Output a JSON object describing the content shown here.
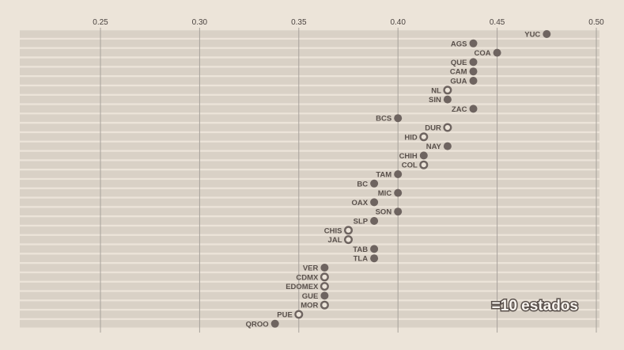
{
  "chart_data": {
    "type": "scatter",
    "title": "",
    "xlabel": "",
    "ylabel": "",
    "xlim": [
      0.2,
      0.5
    ],
    "x_ticks": [
      "0.25",
      "0.30",
      "0.35",
      "0.40",
      "0.45",
      "0.50"
    ],
    "x_tick_values": [
      0.25,
      0.3,
      0.35,
      0.4,
      0.45,
      0.5
    ],
    "grid": true,
    "point_styles": [
      "filled",
      "hollow"
    ],
    "colors": {
      "background": "#ece4d9",
      "band": "#d9d1c6",
      "grid": "#a8a29c",
      "point": "#6e6460",
      "label": "#5a514c"
    },
    "annotation": "=10 estados",
    "points": [
      {
        "label": "YUC",
        "x": 0.475,
        "style": "filled"
      },
      {
        "label": "AGS",
        "x": 0.438,
        "style": "filled"
      },
      {
        "label": "COA",
        "x": 0.45,
        "style": "filled"
      },
      {
        "label": "QUE",
        "x": 0.438,
        "style": "filled"
      },
      {
        "label": "CAM",
        "x": 0.438,
        "style": "filled"
      },
      {
        "label": "GUA",
        "x": 0.438,
        "style": "filled"
      },
      {
        "label": "NL",
        "x": 0.425,
        "style": "hollow"
      },
      {
        "label": "SIN",
        "x": 0.425,
        "style": "filled"
      },
      {
        "label": "ZAC",
        "x": 0.438,
        "style": "filled"
      },
      {
        "label": "BCS",
        "x": 0.4,
        "style": "filled"
      },
      {
        "label": "DUR",
        "x": 0.425,
        "style": "hollow"
      },
      {
        "label": "HID",
        "x": 0.413,
        "style": "hollow"
      },
      {
        "label": "NAY",
        "x": 0.425,
        "style": "filled"
      },
      {
        "label": "CHIH",
        "x": 0.413,
        "style": "filled"
      },
      {
        "label": "COL",
        "x": 0.413,
        "style": "hollow"
      },
      {
        "label": "TAM",
        "x": 0.4,
        "style": "filled"
      },
      {
        "label": "BC",
        "x": 0.388,
        "style": "filled"
      },
      {
        "label": "MIC",
        "x": 0.4,
        "style": "filled"
      },
      {
        "label": "OAX",
        "x": 0.388,
        "style": "filled"
      },
      {
        "label": "SON",
        "x": 0.4,
        "style": "filled"
      },
      {
        "label": "SLP",
        "x": 0.388,
        "style": "filled"
      },
      {
        "label": "CHIS",
        "x": 0.375,
        "style": "hollow"
      },
      {
        "label": "JAL",
        "x": 0.375,
        "style": "hollow"
      },
      {
        "label": "TAB",
        "x": 0.388,
        "style": "filled"
      },
      {
        "label": "TLA",
        "x": 0.388,
        "style": "filled"
      },
      {
        "label": "VER",
        "x": 0.363,
        "style": "filled"
      },
      {
        "label": "CDMX",
        "x": 0.363,
        "style": "hollow"
      },
      {
        "label": "EDOMEX",
        "x": 0.363,
        "style": "hollow"
      },
      {
        "label": "GUE",
        "x": 0.363,
        "style": "filled"
      },
      {
        "label": "MOR",
        "x": 0.363,
        "style": "hollow"
      },
      {
        "label": "PUE",
        "x": 0.35,
        "style": "hollow"
      },
      {
        "label": "QROO",
        "x": 0.338,
        "style": "filled"
      }
    ]
  }
}
